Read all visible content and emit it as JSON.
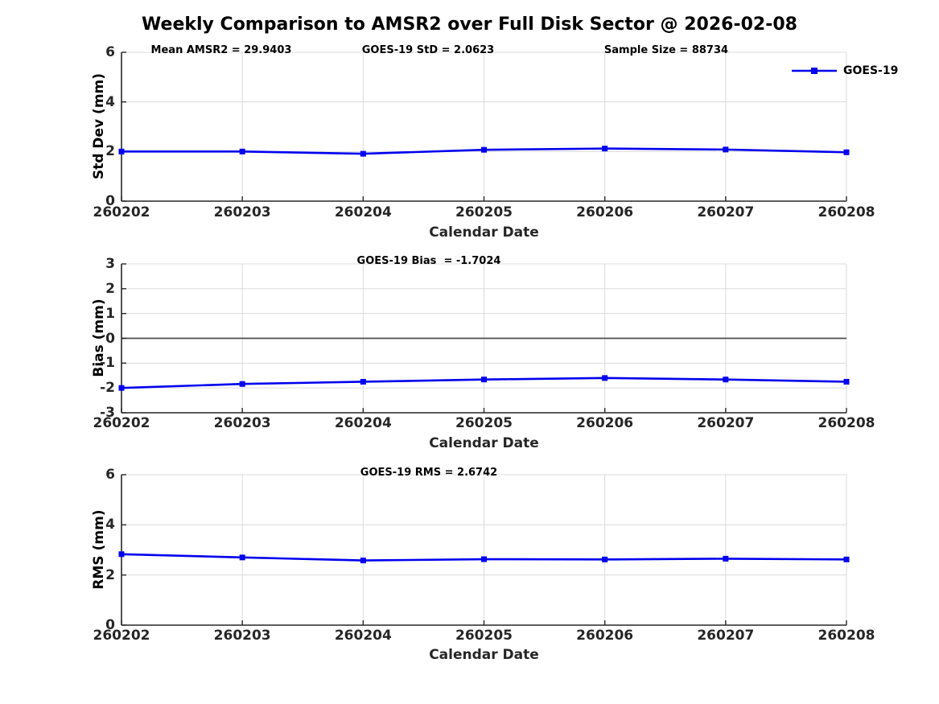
{
  "title": "Weekly Comparison to AMSR2 over Full Disk Sector @ 2026-02-08",
  "legend": {
    "label": "GOES-19"
  },
  "colors": {
    "line": "#0000EE",
    "grid": "#DBDBDB",
    "axis": "#262626",
    "zero_line": "#4D4D4D",
    "text": "#000000"
  },
  "categories": [
    "260202",
    "260203",
    "260204",
    "260205",
    "260206",
    "260207",
    "260208"
  ],
  "chart_data": [
    {
      "type": "line",
      "ylabel": "Std Dev (mm)",
      "xlabel": "Calendar Date",
      "ylim": [
        0,
        6
      ],
      "yticks": [
        0,
        2,
        4,
        6
      ],
      "grid": true,
      "zero_line": false,
      "legend_position": "top-right-outside",
      "annotations": [
        {
          "text": "Mean AMSR2 = 29.9403",
          "position": "left"
        },
        {
          "text": "GOES-19 StD = 2.0623",
          "position": "center"
        },
        {
          "text": "Sample Size = 88734",
          "position": "right"
        }
      ],
      "series": [
        {
          "name": "GOES-19",
          "marker": "square",
          "values": [
            2.0,
            2.0,
            1.91,
            2.07,
            2.12,
            2.08,
            1.97
          ]
        }
      ]
    },
    {
      "type": "line",
      "ylabel": "Bias (mm)",
      "xlabel": "Calendar Date",
      "ylim": [
        -3,
        3
      ],
      "yticks": [
        -3,
        -2,
        -1,
        0,
        1,
        2,
        3
      ],
      "grid": true,
      "zero_line": true,
      "annotations": [
        {
          "text": "GOES-19 Bias  = -1.7024",
          "position": "center"
        }
      ],
      "series": [
        {
          "name": "GOES-19",
          "marker": "square",
          "values": [
            -2.0,
            -1.84,
            -1.75,
            -1.66,
            -1.6,
            -1.66,
            -1.75
          ]
        }
      ]
    },
    {
      "type": "line",
      "ylabel": "RMS (mm)",
      "xlabel": "Calendar Date",
      "ylim": [
        0,
        6
      ],
      "yticks": [
        0,
        2,
        4,
        6
      ],
      "grid": true,
      "zero_line": false,
      "annotations": [
        {
          "text": "GOES-19 RMS = 2.6742",
          "position": "center"
        }
      ],
      "series": [
        {
          "name": "GOES-19",
          "marker": "square",
          "values": [
            2.83,
            2.7,
            2.58,
            2.63,
            2.62,
            2.65,
            2.62
          ]
        }
      ]
    }
  ]
}
